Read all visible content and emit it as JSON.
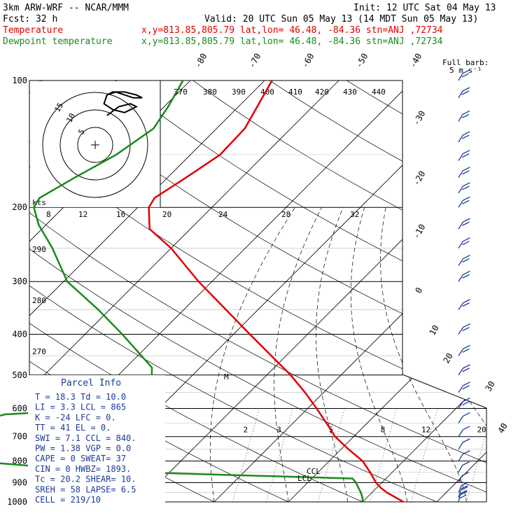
{
  "header": {
    "model": "3km ARW-WRF -- NCAR/MMM",
    "init": "Init: 12 UTC Sat 04 May 13",
    "fcst": "Fcst:   32 h",
    "valid": "Valid: 20 UTC Sun 05 May 13 (14 MDT Sun 05 May 13)",
    "temp_label": "Temperature",
    "dew_label": "Dewpoint temperature",
    "location": "x,y=813.85,805.79   lat,lon= 46.48, -84.36   stn=ANJ ,72734"
  },
  "legend": {
    "barb_title": "Full barb:",
    "barb_units": "5 m s⁻¹"
  },
  "pressure_levels": [
    "100",
    "200",
    "300",
    "400",
    "500",
    "600",
    "700",
    "800",
    "900",
    "1000"
  ],
  "isotherm_labels": [
    "-80",
    "-70",
    "-60",
    "-50",
    "-40",
    "-30",
    "-20",
    "-10",
    "0",
    "10",
    "20",
    "30",
    "40"
  ],
  "theta_labels": [
    "370",
    "380",
    "390",
    "400",
    "410",
    "420",
    "430",
    "440"
  ],
  "dry_adiabat_labels": [
    "290",
    "280",
    "270"
  ],
  "mixing_ratio_labels": [
    "2",
    "3",
    "5",
    "8",
    "12",
    "20"
  ],
  "hodograph": {
    "ring_labels": [
      "15",
      "10",
      "5"
    ],
    "speed_unit": "kts",
    "speed_labels": [
      "8",
      "12",
      "16",
      "20",
      "24",
      "28",
      "32"
    ]
  },
  "profile_labels": {
    "ccl": "CCL",
    "lcl": "LCL",
    "m": "M"
  },
  "parcel": {
    "title": "Parcel Info",
    "rows": [
      "T  =   18.3 Td = 10.0",
      "LI =    3.3 LCL =  865",
      "K  =    -24 LFC =   0.",
      "TT =     41 EL  =   0.",
      "SWI =   7.1 CCL = 840.",
      "PW =   1.38 VGP =  0.0",
      "CAPE =    0 SWEAT= 37",
      "CIN =     0 HWBZ= 1893.",
      "Tc =   20.2 SHEAR=  10.",
      "SREH =   58 LAPSE=  6.5",
      "CELL = 219/10"
    ]
  },
  "chart_data": {
    "type": "skew-t log-p sounding",
    "y_axis": "pressure (hPa)",
    "series": [
      {
        "name": "Temperature",
        "color": "#e00000",
        "points": [
          [
            1000,
            15.5
          ],
          [
            950,
            12.0
          ],
          [
            925,
            10.5
          ],
          [
            900,
            9.2
          ],
          [
            850,
            7.0
          ],
          [
            800,
            4.5
          ],
          [
            750,
            1.0
          ],
          [
            700,
            -2.5
          ],
          [
            650,
            -5.5
          ],
          [
            600,
            -8.8
          ],
          [
            550,
            -12.5
          ],
          [
            500,
            -16.8
          ],
          [
            450,
            -22.0
          ],
          [
            400,
            -27.8
          ],
          [
            350,
            -34.3
          ],
          [
            300,
            -41.8
          ],
          [
            250,
            -50.0
          ],
          [
            225,
            -55.5
          ],
          [
            200,
            -58.5
          ],
          [
            190,
            -59.0
          ],
          [
            170,
            -57.5
          ],
          [
            150,
            -56.0
          ],
          [
            130,
            -56.2
          ],
          [
            115,
            -57.5
          ],
          [
            100,
            -59.0
          ]
        ]
      },
      {
        "name": "Dewpoint temperature",
        "color": "#1a8a1a",
        "points": [
          [
            1000,
            10.0
          ],
          [
            980,
            9.5
          ],
          [
            950,
            8.5
          ],
          [
            925,
            7.5
          ],
          [
            900,
            6.5
          ],
          [
            880,
            5.5
          ],
          [
            850,
            -25.0
          ],
          [
            820,
            -40.0
          ],
          [
            800,
            -60.0
          ],
          [
            750,
            -75.0
          ],
          [
            700,
            -82.0
          ],
          [
            650,
            -86.0
          ],
          [
            620,
            -50.0
          ],
          [
            600,
            -36.0
          ],
          [
            550,
            -34.0
          ],
          [
            500,
            -35.5
          ],
          [
            480,
            -36.5
          ],
          [
            450,
            -39.5
          ],
          [
            400,
            -45.0
          ],
          [
            350,
            -51.5
          ],
          [
            300,
            -59.5
          ],
          [
            250,
            -66.0
          ],
          [
            220,
            -71.0
          ],
          [
            200,
            -74.0
          ],
          [
            190,
            -74.5
          ],
          [
            170,
            -72.5
          ],
          [
            150,
            -70.0
          ],
          [
            130,
            -68.5
          ],
          [
            115,
            -69.5
          ],
          [
            100,
            -71.0
          ]
        ]
      }
    ],
    "winds": [
      {
        "p": 1000,
        "spd": 10,
        "dir": 200
      },
      {
        "p": 975,
        "spd": 10,
        "dir": 210
      },
      {
        "p": 950,
        "spd": 10,
        "dir": 220
      },
      {
        "p": 900,
        "spd": 5,
        "dir": 230
      },
      {
        "p": 850,
        "spd": 5,
        "dir": 240
      },
      {
        "p": 800,
        "spd": 5,
        "dir": 250
      },
      {
        "p": 750,
        "spd": 5,
        "dir": 250
      },
      {
        "p": 700,
        "spd": 5,
        "dir": 255
      },
      {
        "p": 650,
        "spd": 5,
        "dir": 260
      },
      {
        "p": 600,
        "spd": 10,
        "dir": 260
      },
      {
        "p": 550,
        "spd": 10,
        "dir": 265
      },
      {
        "p": 500,
        "spd": 10,
        "dir": 270
      },
      {
        "p": 450,
        "spd": 10,
        "dir": 270
      },
      {
        "p": 400,
        "spd": 10,
        "dir": 270
      },
      {
        "p": 350,
        "spd": 10,
        "dir": 275
      },
      {
        "p": 300,
        "spd": 10,
        "dir": 280
      },
      {
        "p": 275,
        "spd": 10,
        "dir": 280
      },
      {
        "p": 250,
        "spd": 10,
        "dir": 280
      },
      {
        "p": 225,
        "spd": 10,
        "dir": 280
      },
      {
        "p": 200,
        "spd": 10,
        "dir": 285
      },
      {
        "p": 185,
        "spd": 10,
        "dir": 285
      },
      {
        "p": 170,
        "spd": 10,
        "dir": 285
      },
      {
        "p": 155,
        "spd": 10,
        "dir": 290
      },
      {
        "p": 140,
        "spd": 10,
        "dir": 290
      },
      {
        "p": 125,
        "spd": 10,
        "dir": 295
      },
      {
        "p": 110,
        "spd": 10,
        "dir": 295
      },
      {
        "p": 100,
        "spd": 10,
        "dir": 300
      }
    ],
    "hodograph_trace_kts": [
      [
        4,
        10
      ],
      [
        8,
        13
      ],
      [
        12,
        14
      ],
      [
        14,
        13
      ],
      [
        10,
        11
      ],
      [
        6,
        12
      ],
      [
        3,
        14
      ],
      [
        4,
        17
      ],
      [
        7,
        18
      ],
      [
        10,
        17
      ],
      [
        13,
        16
      ],
      [
        16,
        16
      ],
      [
        14,
        17
      ],
      [
        10,
        18
      ],
      [
        6,
        18
      ],
      [
        4,
        17
      ]
    ]
  }
}
